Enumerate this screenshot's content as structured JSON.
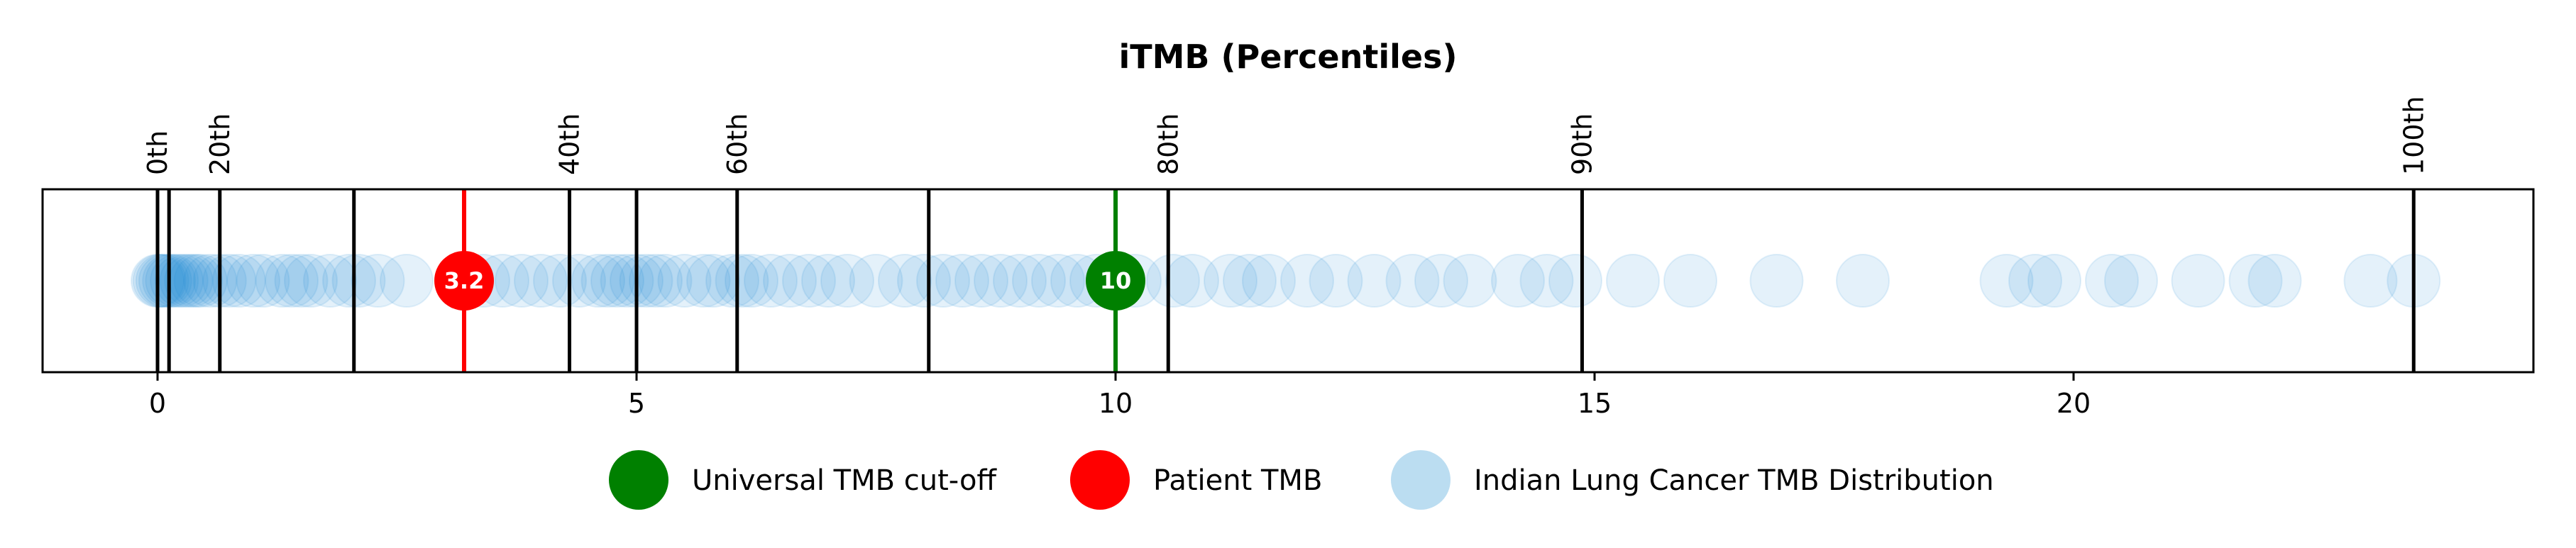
{
  "chart_data": {
    "type": "scatter",
    "title": "iTMB (Percentiles)",
    "xlabel": "",
    "ylabel": "",
    "xlim": [
      -1.2,
      24.8
    ],
    "x_ticks": [
      0,
      5,
      10,
      15,
      20
    ],
    "x_tick_labels": [
      "0",
      "5",
      "10",
      "15",
      "20"
    ],
    "percentile_lines": [
      {
        "x": 0.0,
        "label": "0th"
      },
      {
        "x": 0.12,
        "label": ""
      },
      {
        "x": 0.65,
        "label": "20th"
      },
      {
        "x": 2.05,
        "label": ""
      },
      {
        "x": 4.3,
        "label": "40th"
      },
      {
        "x": 5.0,
        "label": ""
      },
      {
        "x": 6.05,
        "label": "60th"
      },
      {
        "x": 8.05,
        "label": ""
      },
      {
        "x": 10.55,
        "label": "80th"
      },
      {
        "x": 14.87,
        "label": "90th"
      },
      {
        "x": 23.55,
        "label": "100th"
      }
    ],
    "distribution_x": [
      0.0,
      0.02,
      0.05,
      0.08,
      0.12,
      0.15,
      0.2,
      0.25,
      0.3,
      0.35,
      0.4,
      0.45,
      0.55,
      0.65,
      0.75,
      0.85,
      1.0,
      1.1,
      1.3,
      1.4,
      1.5,
      1.6,
      1.8,
      2.0,
      2.1,
      2.3,
      2.6,
      3.2,
      3.4,
      3.6,
      3.8,
      4.0,
      4.2,
      4.4,
      4.6,
      4.7,
      4.8,
      4.9,
      5.0,
      5.1,
      5.2,
      5.3,
      5.5,
      5.7,
      5.8,
      6.0,
      6.1,
      6.2,
      6.4,
      6.6,
      6.8,
      7.0,
      7.2,
      7.5,
      7.8,
      8.0,
      8.2,
      8.4,
      8.6,
      8.8,
      9.0,
      9.2,
      9.4,
      9.6,
      9.8,
      10.0,
      10.2,
      10.6,
      10.8,
      11.2,
      11.4,
      11.6,
      12.0,
      12.3,
      12.7,
      13.1,
      13.4,
      13.7,
      14.2,
      14.5,
      14.8,
      15.4,
      16.0,
      16.9,
      17.8,
      19.3,
      19.6,
      19.8,
      20.4,
      20.6,
      21.3,
      21.9,
      22.1,
      23.1,
      23.55
    ],
    "series": [
      {
        "name": "Universal TMB cut-off",
        "x": 10,
        "label": "10",
        "color": "#008000"
      },
      {
        "name": "Patient TMB",
        "x": 3.2,
        "label": "3.2",
        "color": "#ff0000"
      },
      {
        "name": "Indian Lung Cancer TMB Distribution",
        "color": "#1f8fd2"
      }
    ],
    "legend": [
      {
        "label": "Universal TMB cut-off",
        "color": "#008000",
        "alpha": 1.0
      },
      {
        "label": "Patient TMB",
        "color": "#ff0000",
        "alpha": 1.0
      },
      {
        "label": "Indian Lung Cancer TMB Distribution",
        "color": "#1f8fd2",
        "alpha": 0.3
      }
    ],
    "legend_position": "bottom-center",
    "grid": false
  }
}
